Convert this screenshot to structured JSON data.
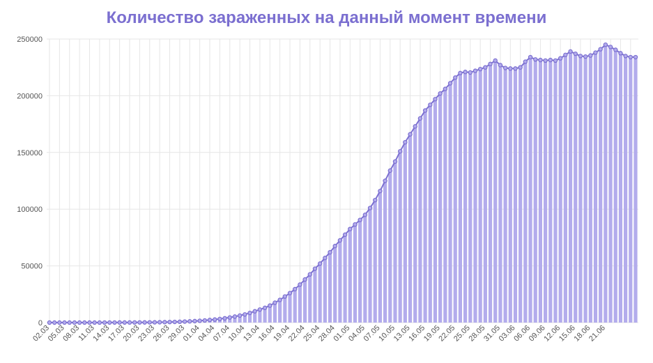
{
  "chart_data": {
    "type": "bar",
    "title": "Количество зараженных на данный момент времени",
    "xlabel": "",
    "ylabel": "",
    "ylim": [
      0,
      250000
    ],
    "grid": true,
    "legend": "none",
    "colors": {
      "bar": "#b3acec",
      "line": "#7b6fd0",
      "title": "#7b6fd0",
      "grid": "#e6e6e6"
    },
    "yticks": [
      "0",
      "50000",
      "100000",
      "150000",
      "200000",
      "250000"
    ],
    "xtick_labels": [
      "02.03",
      "05.03",
      "08.03",
      "11.03",
      "14.03",
      "17.03",
      "20.03",
      "23.03",
      "26.03",
      "29.03",
      "01.04",
      "04.04",
      "07.04",
      "10.04",
      "13.04",
      "16.04",
      "19.04",
      "22.04",
      "25.04",
      "28.04",
      "01.05",
      "04.05",
      "07.05",
      "10.05",
      "13.05",
      "16.05",
      "19.05",
      "22.05",
      "25.05",
      "28.05",
      "31.05",
      "03.06",
      "06.06",
      "09.06",
      "12.06",
      "15.06",
      "18.06",
      "21.06"
    ],
    "x_start": "02.03",
    "x_end": "22.06",
    "values": [
      3,
      3,
      4,
      8,
      13,
      15,
      15,
      18,
      20,
      25,
      30,
      40,
      50,
      60,
      70,
      80,
      100,
      120,
      140,
      160,
      200,
      250,
      300,
      400,
      500,
      600,
      700,
      900,
      1100,
      1300,
      1600,
      1900,
      2300,
      2700,
      3200,
      3800,
      4500,
      5300,
      6200,
      7200,
      8500,
      10000,
      11500,
      13000,
      15000,
      17500,
      20000,
      23000,
      26000,
      29500,
      33500,
      38000,
      42500,
      47500,
      52000,
      57000,
      62000,
      67500,
      72500,
      77500,
      82500,
      86500,
      90500,
      95000,
      101000,
      108000,
      116000,
      125000,
      134000,
      142000,
      151000,
      159000,
      166000,
      173000,
      180000,
      187000,
      192000,
      197000,
      202000,
      206000,
      211000,
      216000,
      220000,
      221000,
      220500,
      222000,
      223500,
      225000,
      228000,
      231000,
      227000,
      224500,
      224000,
      224000,
      225000,
      230000,
      234000,
      232000,
      231500,
      231000,
      231500,
      231000,
      233000,
      236000,
      239000,
      237000,
      235000,
      234500,
      235500,
      238000,
      241000,
      245000,
      243000,
      240500,
      237500,
      235000,
      234000,
      234000
    ]
  }
}
